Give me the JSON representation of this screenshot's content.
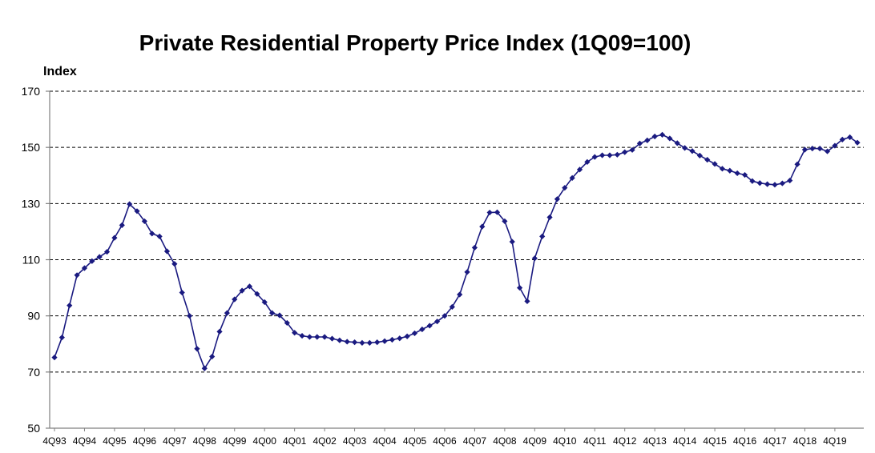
{
  "chart_data": {
    "type": "line",
    "title": "Private Residential Property Price Index (1Q09=100)",
    "ylabel": "Index",
    "xlabel": "",
    "ylim": [
      50,
      170
    ],
    "yticks": [
      50,
      70,
      90,
      110,
      130,
      150,
      170
    ],
    "grid": true,
    "x_tick_labels": [
      "4Q93",
      "4Q94",
      "4Q95",
      "4Q96",
      "4Q97",
      "4Q98",
      "4Q99",
      "4Q00",
      "4Q01",
      "4Q02",
      "4Q03",
      "4Q04",
      "4Q05",
      "4Q06",
      "4Q07",
      "4Q08",
      "4Q09",
      "4Q10",
      "4Q11",
      "4Q12",
      "4Q13",
      "4Q14",
      "4Q15",
      "4Q16",
      "4Q17",
      "4Q18",
      "4Q19"
    ],
    "series_color": "#1a1a80",
    "series": [
      {
        "name": "",
        "values": [
          75.2,
          82.3,
          93.7,
          104.5,
          107.0,
          109.5,
          111.0,
          112.8,
          117.8,
          122.3,
          129.8,
          127.3,
          123.7,
          119.3,
          118.3,
          113.0,
          108.5,
          98.3,
          90.0,
          78.3,
          71.3,
          75.5,
          84.4,
          91.0,
          95.9,
          99.0,
          100.5,
          97.8,
          94.9,
          91.0,
          90.2,
          87.5,
          84.0,
          82.9,
          82.5,
          82.5,
          82.5,
          81.9,
          81.3,
          80.8,
          80.6,
          80.4,
          80.4,
          80.6,
          81.0,
          81.5,
          82.0,
          82.7,
          83.8,
          85.2,
          86.5,
          88.0,
          90.0,
          93.2,
          97.6,
          105.6,
          114.3,
          121.8,
          126.8,
          126.9,
          123.7,
          116.4,
          100.0,
          95.2,
          110.5,
          118.3,
          125.1,
          131.6,
          135.6,
          139.1,
          142.1,
          144.8,
          146.6,
          147.2,
          147.2,
          147.4,
          148.3,
          149.1,
          151.4,
          152.5,
          153.9,
          154.5,
          153.2,
          151.5,
          149.8,
          148.7,
          147.1,
          145.6,
          144.1,
          142.4,
          141.7,
          140.8,
          140.2,
          138.0,
          137.3,
          136.9,
          136.7,
          137.2,
          138.2,
          144.0,
          149.2,
          149.6,
          149.6,
          148.6,
          150.6,
          152.8,
          153.6,
          151.7
        ]
      }
    ]
  }
}
